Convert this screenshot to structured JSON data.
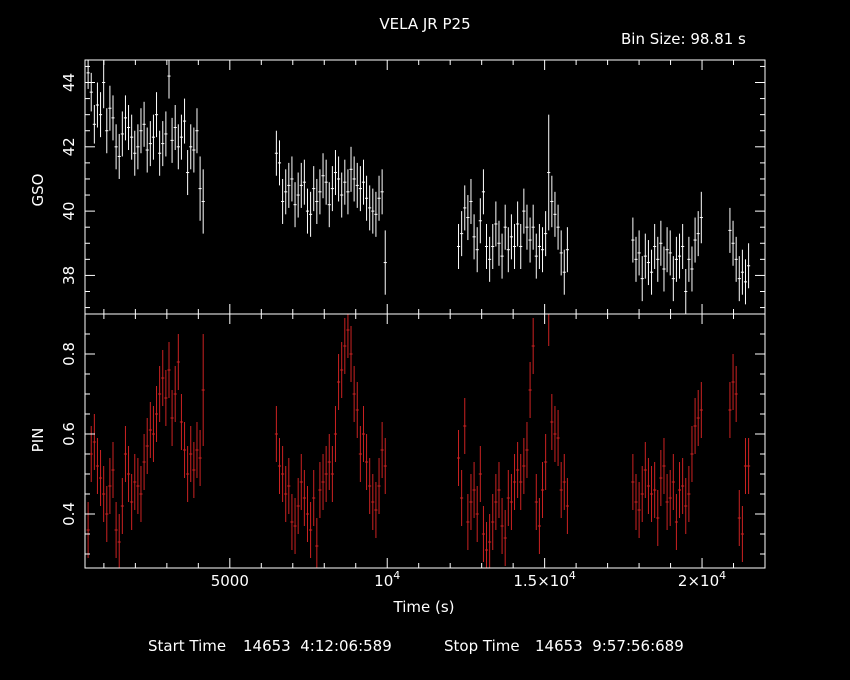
{
  "title": "VELA JR P25",
  "bin_label": "Bin Size: 98.81 s",
  "footer": {
    "start_label": "Start Time",
    "start_value": "14653  4:12:06:589",
    "stop_label": "Stop Time",
    "stop_value": "14653  9:57:56:689"
  },
  "chart_data": [
    {
      "type": "scatter",
      "ylabel": "GSO",
      "xlim": [
        400,
        22000
      ],
      "ylim": [
        36.8,
        44.7
      ],
      "y_ticks": [
        "38",
        "40",
        "42",
        "44"
      ],
      "x_tick_labels": [],
      "color": "#ffffff",
      "series": [
        {
          "x": [
            499,
            598,
            697,
            795,
            894,
            993,
            1092,
            1191,
            1289,
            1388,
            1487,
            1586,
            1685,
            1783,
            1882,
            1981,
            2080,
            2178,
            2277,
            2376,
            2475,
            2574,
            2672,
            2771,
            2870,
            2969,
            3068,
            3166,
            3265,
            3364,
            3463,
            3562,
            3660,
            3759,
            3858,
            3957,
            4056,
            4154,
            6479,
            6578,
            6677,
            6776,
            6874,
            6973,
            7072,
            7171,
            7270,
            7368,
            7467,
            7566,
            7665,
            7764,
            7862,
            7961,
            8060,
            8159,
            8258,
            8356,
            8455,
            8554,
            8653,
            8752,
            8850,
            8949,
            9048,
            9147,
            9246,
            9344,
            9443,
            9542,
            9641,
            9740,
            9838,
            9937,
            12265,
            12364,
            12463,
            12562,
            12660,
            12759,
            12858,
            12957,
            13056,
            13154,
            13253,
            13352,
            13451,
            13550,
            13648,
            13747,
            13846,
            13945,
            14044,
            14142,
            14241,
            14340,
            14439,
            14538,
            14636,
            14735,
            14834,
            14933,
            15032,
            15130,
            15229,
            15328,
            15427,
            15526,
            15624,
            15723,
            17803,
            17902,
            18001,
            18100,
            18198,
            18297,
            18396,
            18495,
            18594,
            18692,
            18791,
            18890,
            18989,
            19088,
            19186,
            19285,
            19384,
            19483,
            19582,
            19680,
            19779,
            19878,
            19977,
            20886,
            20985,
            21084,
            21183,
            21282,
            21380,
            21479
          ],
          "y": [
            44.3,
            43.7,
            42.7,
            43.3,
            43.0,
            44.0,
            42.5,
            43.2,
            42.9,
            42.0,
            41.7,
            42.4,
            42.9,
            42.6,
            42.3,
            41.8,
            42.0,
            42.5,
            42.7,
            41.9,
            42.1,
            42.3,
            43.0,
            41.8,
            42.1,
            42.4,
            44.2,
            42.2,
            42.6,
            42.0,
            42.3,
            42.8,
            41.2,
            42.0,
            41.9,
            42.5,
            40.7,
            40.3,
            41.8,
            41.5,
            40.3,
            40.6,
            40.8,
            41.0,
            40.2,
            40.5,
            40.8,
            40.9,
            40.0,
            39.9,
            40.7,
            40.3,
            40.6,
            41.1,
            40.9,
            40.2,
            40.7,
            41.2,
            41.0,
            40.5,
            40.9,
            40.6,
            41.3,
            41.0,
            40.8,
            40.7,
            40.9,
            40.4,
            40.1,
            40.0,
            39.9,
            40.4,
            40.6,
            38.4,
            38.9,
            39.3,
            40.1,
            39.8,
            40.3,
            39.2,
            38.8,
            39.7,
            40.6,
            38.9,
            38.5,
            38.9,
            39.6,
            39.0,
            38.6,
            39.5,
            38.8,
            39.2,
            38.9,
            39.6,
            38.9,
            40.0,
            39.5,
            39.1,
            39.5,
            38.6,
            38.9,
            38.8,
            39.3,
            41.2,
            40.3,
            39.9,
            39.5,
            38.7,
            38.1,
            38.8,
            39.1,
            38.5,
            38.7,
            37.9,
            38.6,
            38.4,
            38.1,
            38.9,
            38.5,
            39.0,
            38.2,
            38.8,
            38.7,
            37.9,
            38.5,
            38.6,
            38.9,
            37.5,
            38.5,
            38.2,
            39.1,
            39.3,
            39.8,
            39.4,
            39.0,
            38.5,
            37.9,
            38.1,
            37.8,
            38.3
          ],
          "y_err": [
            0.5,
            0.6,
            0.6,
            0.7,
            0.7,
            0.8,
            0.7,
            0.7,
            0.7,
            0.7,
            0.7,
            0.7,
            0.7,
            0.7,
            0.7,
            0.7,
            0.7,
            0.7,
            0.7,
            0.7,
            0.7,
            0.7,
            0.7,
            0.7,
            0.7,
            0.7,
            0.7,
            0.7,
            0.7,
            0.7,
            0.7,
            0.7,
            0.7,
            0.7,
            0.7,
            0.7,
            1.0,
            1.0,
            0.7,
            0.7,
            0.7,
            0.7,
            0.7,
            0.7,
            0.7,
            0.7,
            0.7,
            0.7,
            0.7,
            0.7,
            0.7,
            0.7,
            0.7,
            0.7,
            0.7,
            0.7,
            0.7,
            0.7,
            0.7,
            0.7,
            0.7,
            0.7,
            0.7,
            0.7,
            0.7,
            0.7,
            0.7,
            0.7,
            0.7,
            0.7,
            0.7,
            0.7,
            0.7,
            1.0,
            0.7,
            0.7,
            0.7,
            0.7,
            0.7,
            0.7,
            0.7,
            0.7,
            0.7,
            0.7,
            0.7,
            0.7,
            0.7,
            0.7,
            0.7,
            0.7,
            0.7,
            0.7,
            0.7,
            0.7,
            0.7,
            0.7,
            0.7,
            0.7,
            0.7,
            0.7,
            0.7,
            0.7,
            0.7,
            1.8,
            0.8,
            0.7,
            0.7,
            0.7,
            0.7,
            0.7,
            0.7,
            0.7,
            0.7,
            0.7,
            0.7,
            0.7,
            0.7,
            0.7,
            0.7,
            0.7,
            0.7,
            0.7,
            0.7,
            0.7,
            0.7,
            0.7,
            0.7,
            0.7,
            0.7,
            0.7,
            0.7,
            0.7,
            0.8,
            0.7,
            0.7,
            0.7,
            0.7,
            0.7,
            0.7,
            0.7
          ]
        }
      ]
    },
    {
      "type": "scatter",
      "ylabel": "PIN",
      "xlabel": "Time (s)",
      "xlim": [
        400,
        22000
      ],
      "ylim": [
        0.265,
        0.9
      ],
      "y_ticks": [
        "0.4",
        "0.6",
        "0.8"
      ],
      "x_tick_labels": [
        {
          "value": 5000,
          "base": "5000",
          "exp": ""
        },
        {
          "value": 10000,
          "base": "10",
          "exp": "4"
        },
        {
          "value": 15000,
          "base": "1.5×10",
          "exp": "4"
        },
        {
          "value": 20000,
          "base": "2×10",
          "exp": "4"
        }
      ],
      "color": "#cc2222",
      "series": [
        {
          "x": [
            499,
            598,
            697,
            795,
            894,
            993,
            1092,
            1191,
            1289,
            1388,
            1487,
            1586,
            1685,
            1783,
            1882,
            1981,
            2080,
            2178,
            2277,
            2376,
            2475,
            2574,
            2672,
            2771,
            2870,
            2969,
            3068,
            3166,
            3265,
            3364,
            3463,
            3562,
            3660,
            3759,
            3858,
            3957,
            4056,
            4154,
            6479,
            6578,
            6677,
            6776,
            6874,
            6973,
            7072,
            7171,
            7270,
            7368,
            7467,
            7566,
            7665,
            7764,
            7862,
            7961,
            8060,
            8159,
            8258,
            8356,
            8455,
            8554,
            8653,
            8752,
            8850,
            8949,
            9048,
            9147,
            9246,
            9344,
            9443,
            9542,
            9641,
            9740,
            9838,
            9937,
            12265,
            12364,
            12463,
            12562,
            12660,
            12759,
            12858,
            12957,
            13056,
            13154,
            13253,
            13352,
            13451,
            13550,
            13648,
            13747,
            13846,
            13945,
            14044,
            14142,
            14241,
            14340,
            14439,
            14538,
            14636,
            14735,
            14834,
            14933,
            15032,
            15130,
            15229,
            15328,
            15427,
            15526,
            15624,
            15723,
            17803,
            17902,
            18001,
            18100,
            18198,
            18297,
            18396,
            18495,
            18594,
            18692,
            18791,
            18890,
            18989,
            19088,
            19186,
            19285,
            19384,
            19483,
            19582,
            19680,
            19779,
            19878,
            19977,
            20886,
            20985,
            21084,
            21183,
            21282,
            21380,
            21479
          ],
          "y": [
            0.36,
            0.55,
            0.58,
            0.52,
            0.49,
            0.45,
            0.4,
            0.47,
            0.51,
            0.36,
            0.33,
            0.42,
            0.55,
            0.5,
            0.43,
            0.48,
            0.47,
            0.45,
            0.53,
            0.57,
            0.61,
            0.6,
            0.65,
            0.7,
            0.74,
            0.69,
            0.76,
            0.64,
            0.7,
            0.78,
            0.63,
            0.56,
            0.5,
            0.55,
            0.51,
            0.56,
            0.54,
            0.71,
            0.6,
            0.52,
            0.5,
            0.45,
            0.47,
            0.38,
            0.37,
            0.42,
            0.48,
            0.44,
            0.4,
            0.36,
            0.44,
            0.32,
            0.46,
            0.48,
            0.5,
            0.53,
            0.5,
            0.6,
            0.73,
            0.76,
            0.82,
            0.86,
            0.8,
            0.7,
            0.66,
            0.55,
            0.6,
            0.53,
            0.47,
            0.43,
            0.41,
            0.47,
            0.56,
            0.52,
            0.54,
            0.44,
            0.62,
            0.38,
            0.43,
            0.46,
            0.4,
            0.5,
            0.35,
            0.31,
            0.33,
            0.38,
            0.43,
            0.46,
            0.37,
            0.34,
            0.44,
            0.43,
            0.48,
            0.51,
            0.48,
            0.52,
            0.56,
            0.71,
            0.82,
            0.43,
            0.37,
            0.46,
            0.53,
            0.9,
            0.63,
            0.6,
            0.59,
            0.46,
            0.48,
            0.42,
            0.48,
            0.43,
            0.41,
            0.45,
            0.51,
            0.47,
            0.45,
            0.46,
            0.39,
            0.49,
            0.52,
            0.43,
            0.44,
            0.48,
            0.38,
            0.46,
            0.47,
            0.42,
            0.45,
            0.55,
            0.62,
            0.64,
            0.66,
            0.66,
            0.73,
            0.7,
            0.39,
            0.35,
            0.52,
            0.52
          ],
          "y_err": [
            0.07,
            0.07,
            0.07,
            0.07,
            0.07,
            0.07,
            0.07,
            0.07,
            0.07,
            0.07,
            0.07,
            0.07,
            0.07,
            0.07,
            0.07,
            0.07,
            0.07,
            0.07,
            0.07,
            0.07,
            0.07,
            0.07,
            0.07,
            0.07,
            0.07,
            0.07,
            0.07,
            0.07,
            0.07,
            0.07,
            0.07,
            0.07,
            0.07,
            0.07,
            0.07,
            0.07,
            0.07,
            0.14,
            0.07,
            0.07,
            0.07,
            0.07,
            0.07,
            0.07,
            0.07,
            0.07,
            0.07,
            0.07,
            0.07,
            0.07,
            0.07,
            0.07,
            0.07,
            0.07,
            0.07,
            0.07,
            0.07,
            0.07,
            0.07,
            0.07,
            0.07,
            0.07,
            0.07,
            0.07,
            0.07,
            0.07,
            0.07,
            0.07,
            0.07,
            0.07,
            0.07,
            0.07,
            0.07,
            0.07,
            0.07,
            0.07,
            0.07,
            0.07,
            0.07,
            0.07,
            0.07,
            0.07,
            0.07,
            0.07,
            0.07,
            0.07,
            0.07,
            0.07,
            0.07,
            0.07,
            0.07,
            0.07,
            0.07,
            0.07,
            0.07,
            0.07,
            0.07,
            0.07,
            0.07,
            0.07,
            0.07,
            0.07,
            0.07,
            0.08,
            0.07,
            0.07,
            0.07,
            0.07,
            0.07,
            0.07,
            0.07,
            0.07,
            0.07,
            0.07,
            0.07,
            0.07,
            0.07,
            0.07,
            0.07,
            0.07,
            0.07,
            0.07,
            0.07,
            0.07,
            0.07,
            0.07,
            0.07,
            0.07,
            0.07,
            0.07,
            0.07,
            0.07,
            0.07,
            0.07,
            0.07,
            0.07,
            0.07,
            0.07,
            0.07,
            0.07
          ]
        }
      ]
    }
  ]
}
